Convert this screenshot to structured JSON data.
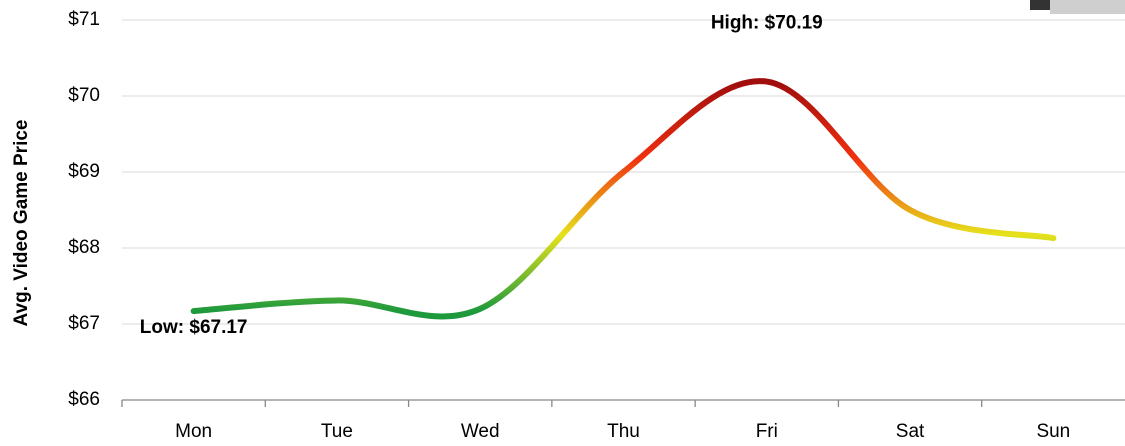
{
  "chart_data": {
    "type": "line",
    "y_label": "Avg. Video Game Price",
    "categories": [
      "Mon",
      "Tue",
      "Wed",
      "Thu",
      "Fri",
      "Sat",
      "Sun"
    ],
    "series": [
      {
        "name": "Avg. Video Game Price",
        "values": [
          67.17,
          67.31,
          67.2,
          69.0,
          70.19,
          68.5,
          68.13
        ],
        "color_scale": [
          "#1e9a3c",
          "#e6e21c",
          "#f0300f",
          "#a00d0d"
        ]
      }
    ],
    "ylim": [
      66,
      71
    ],
    "yticks": [
      {
        "value": 66,
        "label": "$66"
      },
      {
        "value": 67,
        "label": "$67"
      },
      {
        "value": 68,
        "label": "$68"
      },
      {
        "value": 69,
        "label": "$69"
      },
      {
        "value": 70,
        "label": "$70"
      },
      {
        "value": 71,
        "label": "$71"
      }
    ],
    "grid": true,
    "annotations": [
      {
        "text": "High: $70.19",
        "color": "#000000"
      },
      {
        "text": "Low: $67.17",
        "color": "#2a8a22"
      }
    ]
  }
}
